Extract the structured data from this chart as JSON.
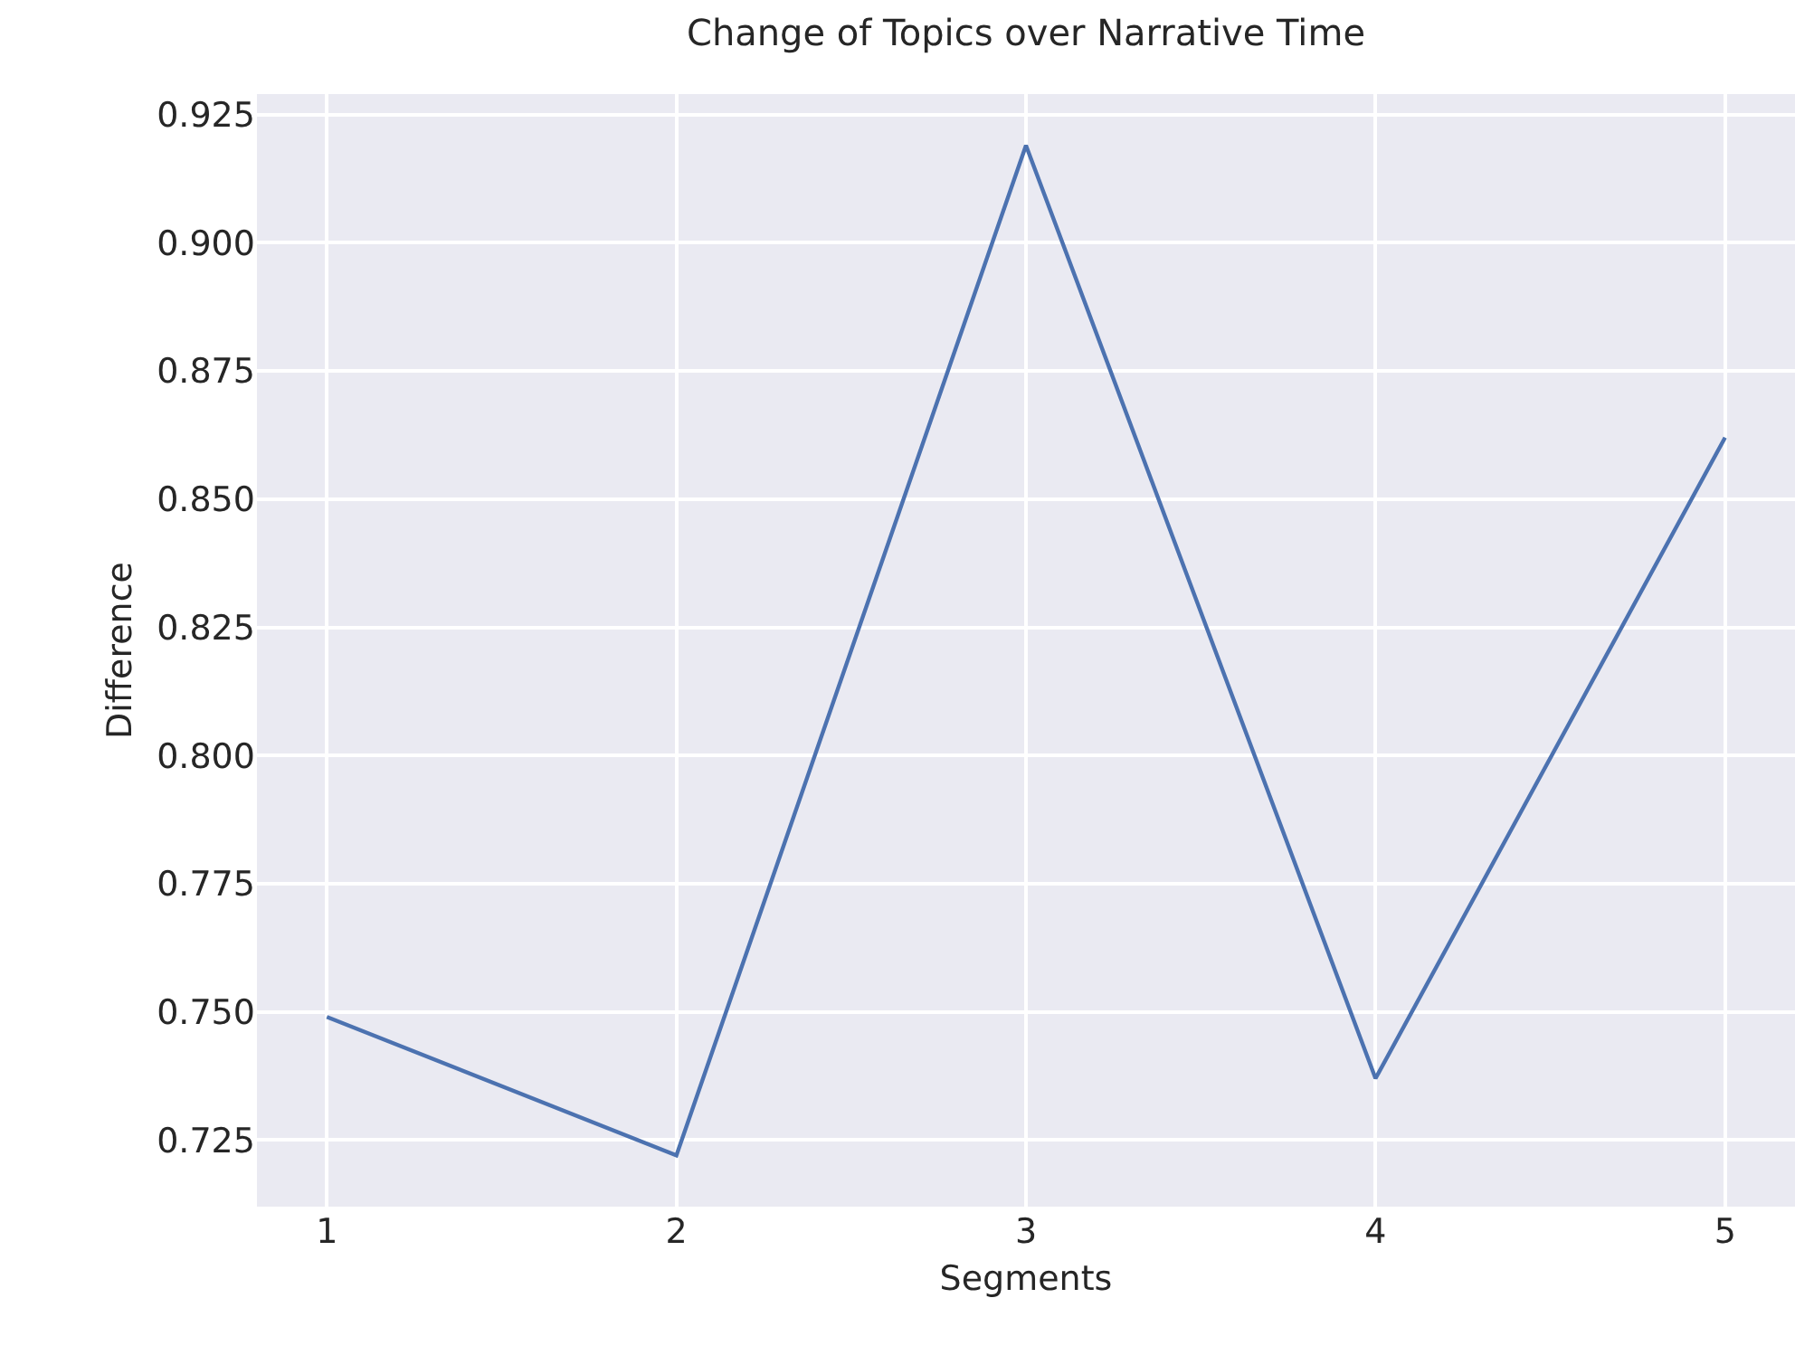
{
  "chart_data": {
    "type": "line",
    "title": "Change of Topics over Narrative Time",
    "xlabel": "Segments",
    "ylabel": "Difference",
    "x": [
      1,
      2,
      3,
      4,
      5
    ],
    "series": [
      {
        "color": "#4c72b0",
        "values": [
          0.749,
          0.722,
          0.919,
          0.737,
          0.862
        ]
      }
    ],
    "xlim": [
      0.8,
      5.2
    ],
    "xticks": [
      1,
      2,
      3,
      4,
      5
    ],
    "ylim": [
      0.712,
      0.929
    ],
    "yticks": [
      {
        "value": 0.725,
        "label": "0.725"
      },
      {
        "value": 0.75,
        "label": "0.750"
      },
      {
        "value": 0.775,
        "label": "0.775"
      },
      {
        "value": 0.8,
        "label": "0.800"
      },
      {
        "value": 0.825,
        "label": "0.825"
      },
      {
        "value": 0.85,
        "label": "0.850"
      },
      {
        "value": 0.875,
        "label": "0.875"
      },
      {
        "value": 0.9,
        "label": "0.900"
      },
      {
        "value": 0.925,
        "label": "0.925"
      }
    ],
    "grid": true,
    "marker": "none",
    "line_style": "solid"
  }
}
